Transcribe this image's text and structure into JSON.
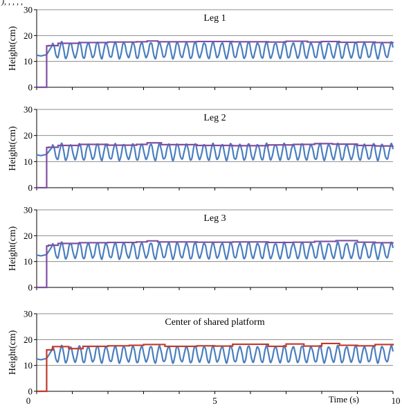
{
  "header_fragment": "),       ,         ,       ,            ,",
  "chart_data": [
    {
      "type": "line",
      "title": "Leg 1",
      "xlabel": "",
      "ylabel": "Height(cm)",
      "xlim": [
        0,
        10
      ],
      "ylim": [
        0,
        30
      ],
      "yticks": [
        "0",
        "10",
        "20",
        "30"
      ],
      "grid": true,
      "series": [
        {
          "color": "#4a7ebf",
          "mean": 14.3,
          "amplitude": 3.0,
          "period": 0.25,
          "start_value": 12.4,
          "start_x": 0.28
        },
        {
          "color": "#7e4fa0",
          "initial_value": 0,
          "step_x": 0.28,
          "x": [
            0.28,
            0.33,
            0.6,
            1.2,
            2.0,
            2.8,
            3.1,
            3.4,
            4.5,
            5.5,
            6.5,
            7.0,
            7.6,
            8.0,
            8.5,
            9.0,
            9.5,
            10.0
          ],
          "y": [
            16.0,
            16.1,
            17.0,
            17.3,
            17.5,
            17.6,
            17.9,
            17.6,
            17.7,
            17.6,
            17.5,
            17.8,
            17.5,
            17.7,
            17.4,
            17.5,
            17.3,
            17.5
          ]
        }
      ]
    },
    {
      "type": "line",
      "title": "Leg 2",
      "xlabel": "",
      "ylabel": "Height(cm)",
      "xlim": [
        0,
        10
      ],
      "ylim": [
        0,
        30
      ],
      "yticks": [
        "0",
        "10",
        "20",
        "30"
      ],
      "grid": true,
      "series": [
        {
          "color": "#4a7ebf",
          "mean": 13.7,
          "amplitude": 3.0,
          "period": 0.25,
          "start_value": 12.6,
          "start_x": 0.28
        },
        {
          "color": "#7e4fa0",
          "initial_value": 0,
          "step_x": 0.28,
          "x": [
            0.28,
            0.33,
            0.6,
            1.2,
            2.0,
            2.8,
            3.1,
            3.5,
            4.5,
            5.5,
            6.5,
            7.2,
            7.8,
            8.3,
            9.0,
            9.5,
            10.0
          ],
          "y": [
            15.4,
            15.5,
            16.2,
            16.6,
            16.3,
            16.6,
            17.2,
            16.5,
            16.2,
            16.1,
            16.4,
            16.6,
            16.9,
            16.7,
            16.2,
            16.0,
            16.1
          ]
        }
      ]
    },
    {
      "type": "line",
      "title": "Leg 3",
      "xlabel": "",
      "ylabel": "Height(cm)",
      "xlim": [
        0,
        10
      ],
      "ylim": [
        0,
        30
      ],
      "yticks": [
        "0",
        "10",
        "20",
        "30"
      ],
      "grid": true,
      "series": [
        {
          "color": "#4a7ebf",
          "mean": 14.2,
          "amplitude": 3.0,
          "period": 0.25,
          "start_value": 12.5,
          "start_x": 0.28
        },
        {
          "color": "#7e4fa0",
          "initial_value": 0,
          "step_x": 0.28,
          "x": [
            0.28,
            0.33,
            0.6,
            1.2,
            2.0,
            2.8,
            3.1,
            3.4,
            4.5,
            5.5,
            6.5,
            7.2,
            7.8,
            8.4,
            9.0,
            9.5,
            10.0
          ],
          "y": [
            16.0,
            16.3,
            17.0,
            17.3,
            17.4,
            17.6,
            18.0,
            17.6,
            17.5,
            17.6,
            17.4,
            17.5,
            17.8,
            18.1,
            17.5,
            17.3,
            17.4
          ]
        }
      ]
    },
    {
      "type": "line",
      "title": "Center of shared platform",
      "xlabel": "Time (s)",
      "ylabel": "Height(cm)",
      "xlim": [
        0,
        10
      ],
      "ylim": [
        0,
        30
      ],
      "xticks": [
        "0",
        "5",
        "10"
      ],
      "yticks": [
        "0",
        "10",
        "20",
        "30"
      ],
      "grid": true,
      "series": [
        {
          "color": "#4a7ebf",
          "mean": 14.3,
          "amplitude": 3.1,
          "period": 0.25,
          "start_value": 12.5,
          "start_x": 0.28
        },
        {
          "color": "#c0392b",
          "initial_value": 0,
          "step_x": 0.28,
          "x": [
            0.28,
            0.45,
            0.9,
            1.3,
            2.0,
            2.6,
            3.0,
            3.6,
            4.5,
            5.0,
            5.5,
            6.5,
            7.0,
            7.5,
            8.0,
            8.5,
            9.0,
            9.5,
            10.0
          ],
          "y": [
            16.0,
            17.3,
            16.5,
            17.4,
            17.6,
            17.8,
            18.1,
            17.4,
            17.6,
            17.5,
            18.2,
            17.4,
            18.3,
            17.5,
            18.5,
            17.8,
            17.6,
            18.1,
            17.7
          ]
        }
      ]
    }
  ]
}
